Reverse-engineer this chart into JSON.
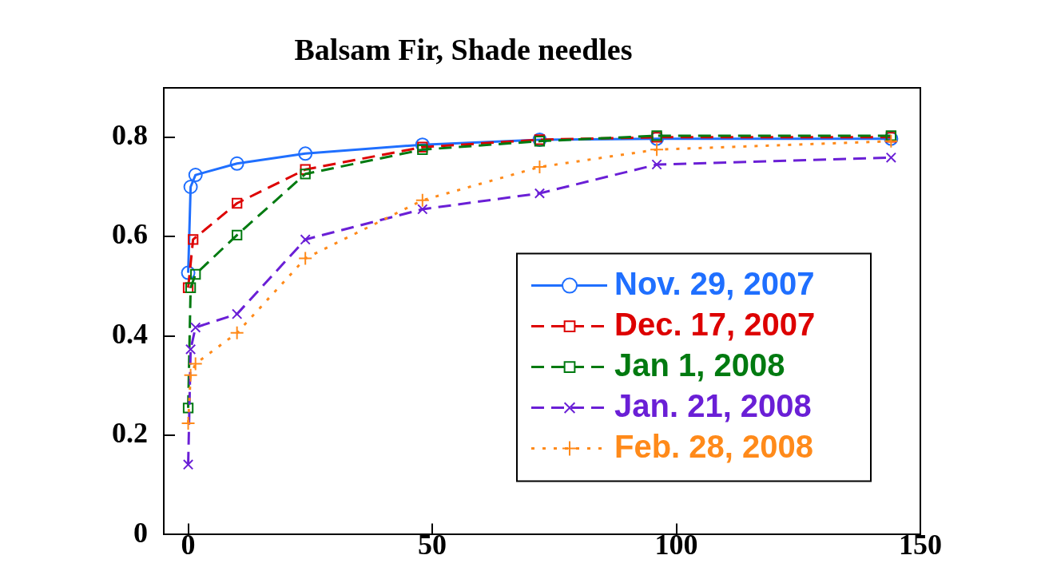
{
  "chart_data": {
    "type": "line",
    "title": "Balsam Fir, Shade needles",
    "xlim": [
      -5,
      150
    ],
    "xticks": [
      0,
      50,
      100,
      150
    ],
    "ylim": [
      0,
      0.9
    ],
    "yticks": [
      0,
      0.2,
      0.4,
      0.6,
      0.8
    ],
    "grid": false,
    "legend": "right",
    "x": [
      0,
      0.5,
      1.5,
      10,
      24,
      48,
      72,
      96,
      144
    ],
    "series": [
      {
        "name": "Nov. 29, 2007",
        "color": "#1f6fff",
        "marker": "circle",
        "line_style": "solid",
        "values": [
          0.527,
          0.7,
          0.724,
          0.747,
          0.767,
          0.785,
          0.795,
          0.797,
          0.797
        ]
      },
      {
        "name": "Dec. 17, 2007",
        "color": "#dd0000",
        "marker": "square",
        "line_style": "dashed",
        "x": [
          0,
          1,
          10,
          24,
          48,
          72,
          96,
          144
        ],
        "values": [
          0.497,
          0.594,
          0.667,
          0.735,
          0.78,
          0.795,
          0.8,
          0.8
        ]
      },
      {
        "name": "Jan 1, 2008",
        "color": "#007a10",
        "marker": "square",
        "line_style": "dashed",
        "values": [
          0.255,
          0.497,
          0.524,
          0.603,
          0.726,
          0.775,
          0.792,
          0.803,
          0.803
        ]
      },
      {
        "name": "Jan. 21, 2008",
        "color": "#6a1fd6",
        "marker": "x",
        "line_style": "dashed",
        "values": [
          0.141,
          0.373,
          0.417,
          0.444,
          0.594,
          0.655,
          0.687,
          0.745,
          0.759
        ]
      },
      {
        "name": "Feb. 28, 2008",
        "color": "#ff8a1a",
        "marker": "cross",
        "line_style": "dotted",
        "values": [
          0.224,
          0.321,
          0.344,
          0.406,
          0.556,
          0.673,
          0.74,
          0.775,
          0.792
        ]
      }
    ]
  }
}
